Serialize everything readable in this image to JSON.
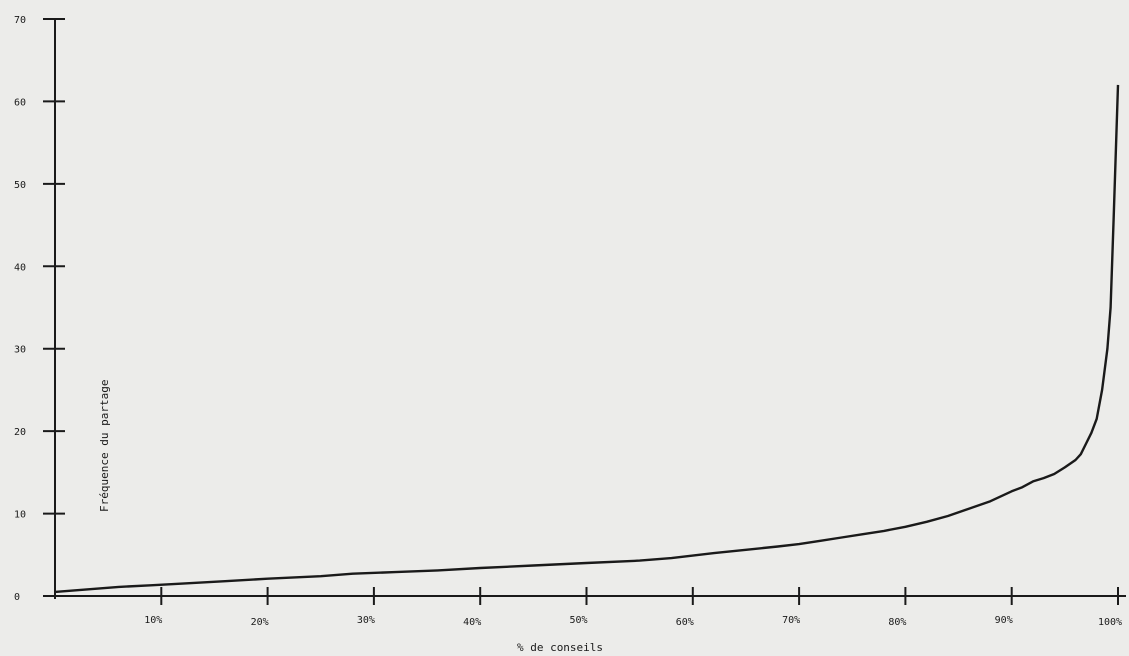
{
  "chart_data": {
    "type": "line",
    "title": "",
    "xlabel": "% de conseils",
    "ylabel": "Fréquence du partage",
    "xlim": [
      0,
      100
    ],
    "ylim": [
      0,
      70
    ],
    "y_ticks": [
      0,
      10,
      20,
      30,
      40,
      50,
      60,
      70
    ],
    "x_ticks": [
      10,
      20,
      30,
      40,
      50,
      60,
      70,
      80,
      90,
      100
    ],
    "x_tick_labels": [
      "10%",
      "20%",
      "30%",
      "40%",
      "50%",
      "60%",
      "70%",
      "80%",
      "90%",
      "100%"
    ],
    "grid": false,
    "legend": "none",
    "line_color": "#1a1a1a",
    "series": [
      {
        "x": [
          0,
          3,
          6,
          9,
          12,
          16,
          20,
          25,
          28,
          32,
          36,
          40,
          45,
          50,
          55,
          58,
          60,
          62,
          65,
          68,
          70,
          72,
          74,
          76,
          78,
          80,
          82,
          84,
          86,
          88,
          90,
          91,
          92,
          93,
          94,
          95,
          96,
          96.5,
          97,
          97.5,
          98,
          98.5,
          99,
          99.3,
          99.6,
          100
        ],
        "y": [
          0.5,
          0.8,
          1.1,
          1.3,
          1.5,
          1.8,
          2.1,
          2.4,
          2.7,
          2.9,
          3.1,
          3.4,
          3.7,
          4.0,
          4.3,
          4.6,
          4.9,
          5.2,
          5.6,
          6.0,
          6.3,
          6.7,
          7.1,
          7.5,
          7.9,
          8.4,
          9.0,
          9.7,
          10.6,
          11.5,
          12.7,
          13.2,
          13.9,
          14.3,
          14.8,
          15.6,
          16.5,
          17.2,
          18.5,
          19.8,
          21.5,
          25.0,
          30.0,
          35.0,
          46.0,
          62.0
        ]
      }
    ]
  }
}
